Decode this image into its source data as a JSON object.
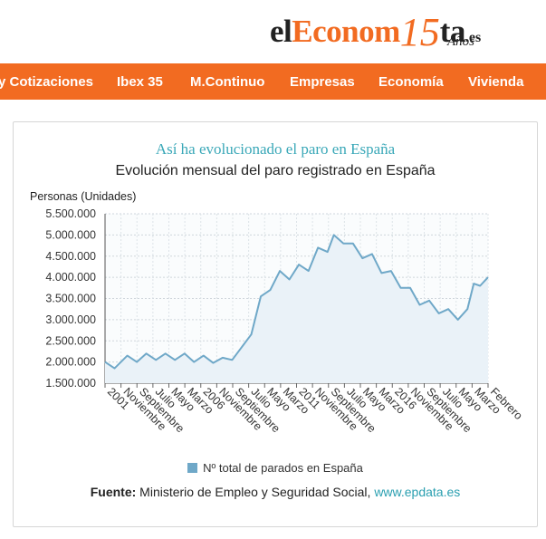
{
  "logo": {
    "part1": "el",
    "part2": "Econom",
    "num": "15",
    "part3": "ta",
    "tld": ".es",
    "anos": "Años"
  },
  "nav": [
    "y Cotizaciones",
    "Ibex 35",
    "M.Continuo",
    "Empresas",
    "Economía",
    "Vivienda"
  ],
  "chart_title_top": "Así ha evolucionado el paro en España",
  "chart_title": "Evolución mensual del paro registrado en España",
  "y_axis_label": "Personas (Unidades)",
  "legend_label": "Nº total de parados en España",
  "source_label": "Fuente:",
  "source_text": " Ministerio de Empleo y Seguridad Social, ",
  "source_link": "www.epdata.es",
  "colors": {
    "accent": "#f26b21",
    "line": "#6fa8c8",
    "area": "#eaf2f8",
    "title": "#3aa8b8"
  },
  "chart_data": {
    "type": "area",
    "ylabel": "Personas (Unidades)",
    "ylim": [
      1500000,
      5500000
    ],
    "yticks": [
      "5.500.000",
      "5.000.000",
      "4.500.000",
      "4.000.000",
      "3.500.000",
      "3.000.000",
      "2.500.000",
      "2.000.000",
      "1.500.000"
    ],
    "xtick_labels": [
      "2001",
      "Noviembre",
      "Septiembre",
      "Julio",
      "Mayo",
      "Marzo",
      "2006",
      "Noviembre",
      "Septiembre",
      "Julio",
      "Mayo",
      "Marzo",
      "2011",
      "Noviembre",
      "Septiembre",
      "Julio",
      "Mayo",
      "Marzo",
      "2016",
      "Noviembre",
      "Septiembre",
      "Julio",
      "Mayo",
      "Marzo",
      "Febrero"
    ],
    "series": [
      {
        "name": "Nº total de parados en España",
        "x": [
          "2001-01",
          "2001-07",
          "2002-03",
          "2002-09",
          "2003-03",
          "2003-09",
          "2004-03",
          "2004-09",
          "2005-03",
          "2005-09",
          "2006-03",
          "2006-09",
          "2007-03",
          "2007-09",
          "2008-03",
          "2008-09",
          "2009-03",
          "2009-09",
          "2010-03",
          "2010-09",
          "2011-03",
          "2011-09",
          "2012-03",
          "2012-09",
          "2013-01",
          "2013-07",
          "2014-01",
          "2014-07",
          "2015-01",
          "2015-07",
          "2016-01",
          "2016-07",
          "2017-01",
          "2017-07",
          "2018-01",
          "2018-07",
          "2019-01",
          "2019-07",
          "2020-01",
          "2020-05",
          "2020-09",
          "2021-02"
        ],
        "values": [
          2000000,
          1850000,
          2150000,
          2000000,
          2200000,
          2050000,
          2200000,
          2050000,
          2200000,
          2000000,
          2150000,
          1980000,
          2100000,
          2050000,
          2350000,
          2650000,
          3550000,
          3700000,
          4150000,
          3950000,
          4300000,
          4150000,
          4700000,
          4600000,
          5000000,
          4800000,
          4800000,
          4450000,
          4550000,
          4100000,
          4150000,
          3750000,
          3750000,
          3350000,
          3450000,
          3150000,
          3250000,
          3000000,
          3250000,
          3850000,
          3800000,
          4000000
        ]
      }
    ]
  }
}
